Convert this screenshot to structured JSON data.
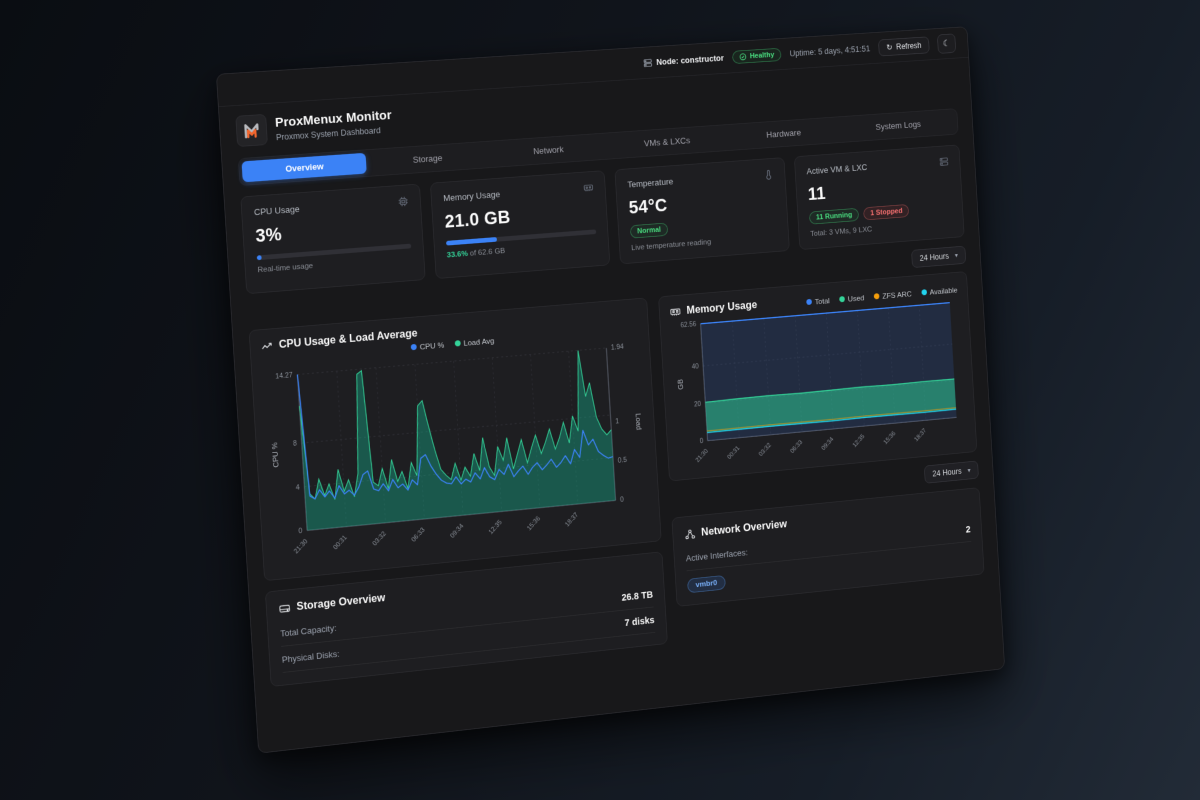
{
  "topbar": {
    "node_label": "Node: constructor",
    "health_badge": "Healthy",
    "uptime": "Uptime: 5 days, 4:51:51",
    "refresh_label": "Refresh"
  },
  "header": {
    "title": "ProxMenux Monitor",
    "subtitle": "Proxmox System Dashboard"
  },
  "tabs": [
    {
      "label": "Overview",
      "active": true
    },
    {
      "label": "Storage",
      "active": false
    },
    {
      "label": "Network",
      "active": false
    },
    {
      "label": "VMs & LXCs",
      "active": false
    },
    {
      "label": "Hardware",
      "active": false
    },
    {
      "label": "System Logs",
      "active": false
    }
  ],
  "stats": {
    "cpu": {
      "title": "CPU Usage",
      "value": "3%",
      "percent": 3,
      "note": "Real-time usage"
    },
    "memory": {
      "title": "Memory Usage",
      "value": "21.0 GB",
      "percent": 33.6,
      "fraction": "33.6%",
      "fraction_suffix": " of 62.6 GB"
    },
    "temperature": {
      "title": "Temperature",
      "value": "54°C",
      "badge": "Normal",
      "note": "Live temperature reading"
    },
    "vms": {
      "title": "Active VM & LXC",
      "value": "11",
      "running": "11 Running",
      "stopped": "1 Stopped",
      "note": "Total: 3 VMs, 9 LXC"
    }
  },
  "time_range": "24 Hours",
  "colors": {
    "accent_blue": "#3b82f6",
    "green": "#34d399",
    "orange": "#f59e0b",
    "cyan": "#22d3ee",
    "red": "#f87171"
  },
  "chart_data": [
    {
      "type": "line",
      "title": "CPU Usage & Load Average",
      "x_labels": [
        "21:30",
        "00:31",
        "03:32",
        "06:33",
        "09:34",
        "12:35",
        "15:36",
        "18:37"
      ],
      "y_left": {
        "label": "CPU %",
        "ticks": [
          0,
          4,
          8
        ],
        "max": 14.27
      },
      "y_right": {
        "label": "Load",
        "ticks": [
          0,
          0.5,
          1
        ],
        "max": 1.94
      },
      "grid": true,
      "legend_position": "top-center",
      "series": [
        {
          "name": "CPU %",
          "color": "#3b82f6",
          "axis": "left",
          "fill": false,
          "values": [
            14.27,
            3.1,
            2.8,
            3.6,
            2.9,
            3.4,
            2.7,
            3.8,
            3.0,
            3.3,
            2.8,
            3.5,
            4.6,
            4.9,
            3.2,
            3.0,
            3.6,
            2.9,
            3.9,
            3.1,
            3.4,
            2.8,
            3.7,
            3.2,
            5.6,
            5.9,
            4.8,
            4.0,
            3.4,
            3.1,
            3.0,
            3.6,
            2.9,
            3.3,
            3.0,
            3.8,
            3.2,
            4.2,
            3.3,
            3.0,
            3.9,
            3.4,
            4.3,
            3.1,
            3.6,
            4.0,
            3.2,
            3.8,
            4.2,
            3.5,
            3.9,
            4.4,
            3.6,
            4.0,
            4.6,
            3.8,
            5.1,
            4.3,
            6.8,
            5.4,
            5.9,
            4.7,
            4.3,
            4.0,
            4.1
          ]
        },
        {
          "name": "Load Avg",
          "color": "#34d399",
          "axis": "right",
          "fill": true,
          "values": [
            1.55,
            0.45,
            0.38,
            0.62,
            0.41,
            0.55,
            0.35,
            0.72,
            0.44,
            0.58,
            0.36,
            0.65,
            1.88,
            1.92,
            0.52,
            0.47,
            0.68,
            0.42,
            0.78,
            0.5,
            0.62,
            0.4,
            0.72,
            0.55,
            1.42,
            1.48,
            1.15,
            0.85,
            0.6,
            0.52,
            0.46,
            0.66,
            0.44,
            0.6,
            0.48,
            0.76,
            0.54,
            0.95,
            0.58,
            0.46,
            0.82,
            0.64,
            0.92,
            0.52,
            0.7,
            0.88,
            0.58,
            0.76,
            0.92,
            0.68,
            0.82,
            0.98,
            0.72,
            0.86,
            1.05,
            0.78,
            1.12,
            0.92,
            1.94,
            1.35,
            1.52,
            1.08,
            0.92,
            0.84,
            0.9
          ]
        }
      ]
    },
    {
      "type": "area",
      "title": "Memory Usage",
      "ylabel": "GB",
      "x_labels": [
        "21:30",
        "00:31",
        "03:32",
        "06:33",
        "09:34",
        "12:35",
        "15:36",
        "18:37"
      ],
      "y_ticks": [
        0,
        20,
        40
      ],
      "y_max": 62.56,
      "grid": true,
      "legend_position": "top-right",
      "series": [
        {
          "name": "Total",
          "color": "#3b82f6",
          "values": [
            62.56,
            62.56,
            62.56,
            62.56,
            62.56,
            62.56,
            62.56,
            62.56,
            62.56
          ]
        },
        {
          "name": "Used",
          "color": "#34d399",
          "values": [
            20.6,
            20.9,
            21.1,
            20.8,
            21.0,
            21.2,
            20.9,
            21.1,
            21.0
          ]
        },
        {
          "name": "ZFS ARC",
          "color": "#f59e0b",
          "values": [
            5.2,
            5.3,
            5.4,
            5.3,
            5.2,
            5.4,
            5.3,
            5.2,
            5.3
          ]
        },
        {
          "name": "Available",
          "color": "#22d3ee",
          "values": [
            4.4,
            4.5,
            4.6,
            4.5,
            4.4,
            4.6,
            4.5,
            4.4,
            4.5
          ]
        }
      ]
    }
  ],
  "storage": {
    "title": "Storage Overview",
    "rows": [
      {
        "label": "Total Capacity:",
        "value": "26.8 TB"
      },
      {
        "label": "Physical Disks:",
        "value": "7 disks"
      }
    ]
  },
  "network": {
    "title": "Network Overview",
    "rows": [
      {
        "label": "Active Interfaces:",
        "value": "2"
      }
    ],
    "interface_badges": [
      "vmbr0"
    ]
  }
}
